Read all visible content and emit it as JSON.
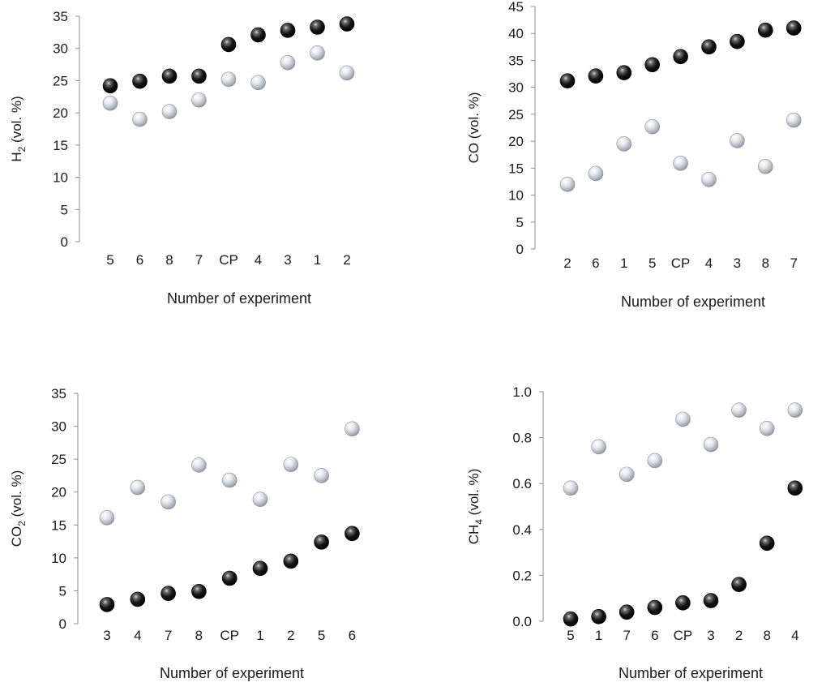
{
  "chart_data": [
    {
      "type": "scatter",
      "title": "",
      "ylabel": "H2 (vol. %)",
      "ylabel_main": "H",
      "ylabel_sub": "2",
      "ylabel_rest": " (vol. %)",
      "xlabel": "Number of experiment",
      "ylim": [
        0,
        35
      ],
      "yticks": [
        "0",
        "5",
        "10",
        "15",
        "20",
        "25",
        "30",
        "35"
      ],
      "categories": [
        "5",
        "6",
        "8",
        "7",
        "CP",
        "4",
        "3",
        "1",
        "2"
      ],
      "series": [
        {
          "color": "black",
          "values": [
            24.2,
            24.9,
            25.7,
            25.7,
            30.6,
            32.1,
            32.8,
            33.3,
            33.8
          ]
        },
        {
          "color": "silver",
          "values": [
            21.5,
            19.0,
            20.2,
            22.0,
            25.2,
            24.7,
            27.8,
            29.3,
            26.2
          ]
        }
      ]
    },
    {
      "type": "scatter",
      "title": "",
      "ylabel": "CO (vol. %)",
      "ylabel_main": "CO",
      "ylabel_sub": "",
      "ylabel_rest": " (vol. %)",
      "xlabel": "Number of experiment",
      "ylim": [
        0,
        45
      ],
      "yticks": [
        "0",
        "5",
        "10",
        "15",
        "20",
        "25",
        "30",
        "35",
        "40",
        "45"
      ],
      "categories": [
        "2",
        "6",
        "1",
        "5",
        "CP",
        "4",
        "3",
        "8",
        "7"
      ],
      "series": [
        {
          "color": "black",
          "values": [
            31.2,
            32.1,
            32.7,
            34.2,
            35.7,
            37.5,
            38.5,
            40.6,
            41.0
          ]
        },
        {
          "color": "silver",
          "values": [
            12.0,
            14.0,
            19.5,
            22.7,
            15.9,
            12.9,
            20.1,
            15.3,
            23.9
          ]
        }
      ]
    },
    {
      "type": "scatter",
      "title": "",
      "ylabel": "CO2 (vol. %)",
      "ylabel_main": "CO",
      "ylabel_sub": "2",
      "ylabel_rest": " (vol. %)",
      "xlabel": "Number of experiment",
      "ylim": [
        0,
        35
      ],
      "yticks": [
        "0",
        "5",
        "10",
        "15",
        "20",
        "25",
        "30",
        "35"
      ],
      "categories": [
        "3",
        "4",
        "7",
        "8",
        "CP",
        "1",
        "2",
        "5",
        "6"
      ],
      "series": [
        {
          "color": "black",
          "values": [
            2.9,
            3.7,
            4.6,
            4.9,
            6.9,
            8.4,
            9.5,
            12.4,
            13.7
          ]
        },
        {
          "color": "silver",
          "values": [
            16.1,
            20.7,
            18.5,
            24.1,
            21.8,
            18.9,
            24.2,
            22.5,
            29.6
          ]
        }
      ]
    },
    {
      "type": "scatter",
      "title": "",
      "ylabel": "CH4 (vol. %)",
      "ylabel_main": "CH",
      "ylabel_sub": "4",
      "ylabel_rest": " (vol. %)",
      "xlabel": "Number of experiment",
      "ylim": [
        0,
        1.0
      ],
      "yticks": [
        "0.0",
        "0.2",
        "0.4",
        "0.6",
        "0.8",
        "1.0"
      ],
      "categories": [
        "5",
        "1",
        "7",
        "6",
        "CP",
        "3",
        "2",
        "8",
        "4"
      ],
      "series": [
        {
          "color": "black",
          "values": [
            0.01,
            0.02,
            0.04,
            0.06,
            0.08,
            0.09,
            0.16,
            0.34,
            0.58
          ]
        },
        {
          "color": "silver",
          "values": [
            0.58,
            0.76,
            0.64,
            0.7,
            0.88,
            0.77,
            0.92,
            0.84,
            0.92
          ]
        }
      ]
    }
  ]
}
